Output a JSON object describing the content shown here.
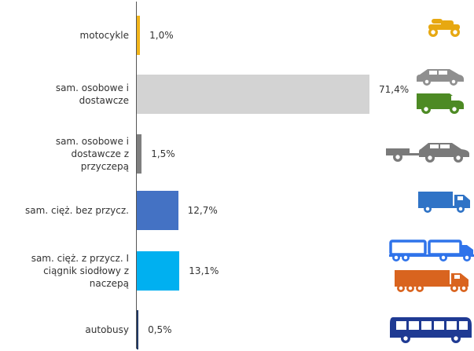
{
  "chart_data": {
    "type": "bar",
    "orientation": "horizontal",
    "categories": [
      "motocykle",
      "sam. osobowe i\ndostawcze",
      "sam. osobowe i\ndostawcze z\nprzyczepą",
      "sam. cięż. bez przycz.",
      "sam. cięż. z przycz. I\nciągnik siodłowy z\nnaczepą",
      "autobusy"
    ],
    "values": [
      1.0,
      71.4,
      1.5,
      12.7,
      13.1,
      0.5
    ],
    "value_labels": [
      "1,0%",
      "71,4%",
      "1,5%",
      "12,7%",
      "13,1%",
      "0,5%"
    ],
    "colors": [
      "#f2b51b",
      "#d3d3d3",
      "#7f7f7f",
      "#4472c4",
      "#00b0f0",
      "#203864"
    ],
    "icons": [
      [
        "motorcycle-icon"
      ],
      [
        "car-icon",
        "van-icon"
      ],
      [
        "car-with-trailer-icon"
      ],
      [
        "truck-icon"
      ],
      [
        "truck-with-trailer-icon",
        "semi-truck-icon"
      ],
      [
        "bus-icon"
      ]
    ],
    "icon_colors": {
      "motorcycle": "#e7a811",
      "car": "#8f8f8f",
      "van": "#4d8a24",
      "car_trailer": "#7a7a7a",
      "truck": "#2f73c6",
      "truck_trailer": "#2f73ea",
      "semi_truck": "#d9641f",
      "bus": "#1f3a93"
    },
    "title": "",
    "xlabel": "",
    "ylabel": "",
    "xlim": [
      0,
      100
    ],
    "grid": false,
    "legend": "none"
  }
}
